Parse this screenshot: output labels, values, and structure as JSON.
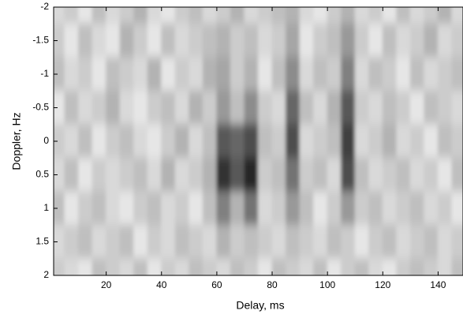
{
  "chart_data": {
    "type": "heatmap",
    "xlabel": "Delay, ms",
    "ylabel": "Doppler, Hz",
    "xlim": [
      1,
      149
    ],
    "ylim": [
      -2,
      2
    ],
    "y_reversed": true,
    "xticks": [
      20,
      40,
      60,
      80,
      100,
      120,
      140
    ],
    "yticks": [
      -2,
      -1.5,
      -1,
      -0.5,
      0,
      0.5,
      1,
      1.5,
      2
    ],
    "colormap": "gray",
    "x": [
      2.5,
      7.5,
      12.5,
      17.5,
      22.5,
      27.5,
      32.5,
      37.5,
      42.5,
      47.5,
      52.5,
      57.5,
      62.5,
      67.5,
      72.5,
      77.5,
      82.5,
      87.5,
      92.5,
      97.5,
      102.5,
      107.5,
      112.5,
      117.5,
      122.5,
      127.5,
      132.5,
      137.5,
      142.5,
      147.5
    ],
    "y": [
      -2,
      -1.5,
      -1,
      -0.5,
      0,
      0.5,
      1,
      1.5,
      2
    ],
    "z": [
      [
        0.85,
        0.8,
        0.9,
        0.75,
        0.85,
        0.8,
        0.7,
        0.85,
        0.9,
        0.8,
        0.75,
        0.85,
        0.8,
        0.7,
        0.85,
        0.8,
        0.75,
        0.7,
        0.85,
        0.9,
        0.8,
        0.7,
        0.85,
        0.8,
        0.9,
        0.75,
        0.85,
        0.8,
        0.7,
        0.85
      ],
      [
        0.8,
        0.9,
        0.75,
        0.85,
        0.9,
        0.7,
        0.8,
        0.9,
        0.75,
        0.85,
        0.8,
        0.75,
        0.7,
        0.8,
        0.75,
        0.85,
        0.8,
        0.65,
        0.9,
        0.8,
        0.75,
        0.6,
        0.8,
        0.9,
        0.75,
        0.85,
        0.8,
        0.7,
        0.85,
        0.8
      ],
      [
        0.75,
        0.85,
        0.8,
        0.9,
        0.75,
        0.8,
        0.85,
        0.7,
        0.9,
        0.8,
        0.85,
        0.7,
        0.65,
        0.8,
        0.7,
        0.9,
        0.75,
        0.55,
        0.85,
        0.75,
        0.8,
        0.5,
        0.85,
        0.75,
        0.8,
        0.9,
        0.75,
        0.85,
        0.8,
        0.75
      ],
      [
        0.9,
        0.75,
        0.85,
        0.8,
        0.7,
        0.85,
        0.9,
        0.8,
        0.75,
        0.85,
        0.7,
        0.8,
        0.6,
        0.75,
        0.55,
        0.8,
        0.85,
        0.4,
        0.75,
        0.85,
        0.7,
        0.35,
        0.8,
        0.85,
        0.75,
        0.8,
        0.9,
        0.75,
        0.8,
        0.85
      ],
      [
        0.8,
        0.85,
        0.75,
        0.9,
        0.8,
        0.75,
        0.85,
        0.9,
        0.8,
        0.7,
        0.85,
        0.75,
        0.35,
        0.4,
        0.3,
        0.75,
        0.8,
        0.3,
        0.85,
        0.8,
        0.75,
        0.25,
        0.85,
        0.8,
        0.7,
        0.85,
        0.8,
        0.9,
        0.75,
        0.8
      ],
      [
        0.85,
        0.75,
        0.9,
        0.8,
        0.85,
        0.8,
        0.75,
        0.85,
        0.7,
        0.85,
        0.8,
        0.7,
        0.2,
        0.35,
        0.15,
        0.8,
        0.75,
        0.45,
        0.8,
        0.75,
        0.85,
        0.3,
        0.75,
        0.85,
        0.8,
        0.75,
        0.85,
        0.8,
        0.9,
        0.75
      ],
      [
        0.75,
        0.9,
        0.8,
        0.75,
        0.85,
        0.9,
        0.8,
        0.75,
        0.85,
        0.8,
        0.9,
        0.75,
        0.5,
        0.7,
        0.45,
        0.85,
        0.8,
        0.6,
        0.75,
        0.9,
        0.8,
        0.6,
        0.8,
        0.75,
        0.85,
        0.8,
        0.75,
        0.85,
        0.8,
        0.9
      ],
      [
        0.85,
        0.8,
        0.75,
        0.85,
        0.8,
        0.75,
        0.9,
        0.8,
        0.85,
        0.75,
        0.8,
        0.85,
        0.7,
        0.8,
        0.75,
        0.8,
        0.85,
        0.75,
        0.8,
        0.85,
        0.75,
        0.8,
        0.9,
        0.8,
        0.75,
        0.85,
        0.8,
        0.75,
        0.85,
        0.8
      ],
      [
        0.8,
        0.85,
        0.9,
        0.75,
        0.8,
        0.85,
        0.75,
        0.9,
        0.8,
        0.85,
        0.75,
        0.8,
        0.85,
        0.75,
        0.8,
        0.9,
        0.75,
        0.8,
        0.85,
        0.75,
        0.9,
        0.8,
        0.75,
        0.85,
        0.9,
        0.8,
        0.75,
        0.8,
        0.85,
        0.75
      ]
    ]
  }
}
